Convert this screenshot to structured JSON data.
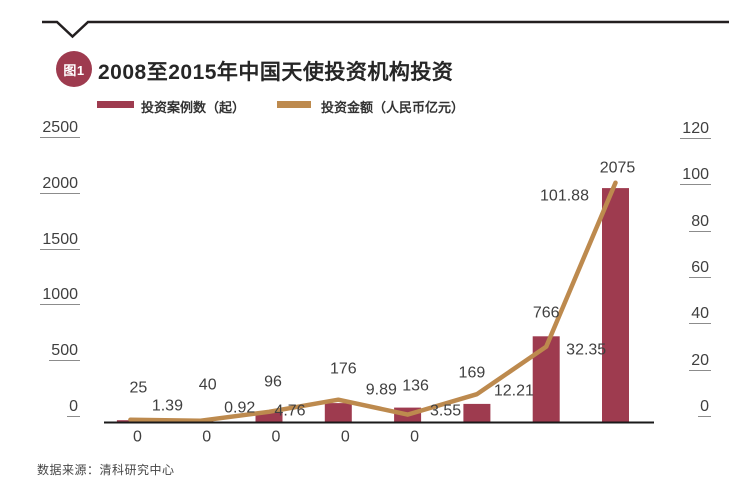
{
  "header": {
    "figure_label": "图1",
    "title": "2008至2015年中国天使投资机构投资"
  },
  "legend": {
    "bar": "投资案例数（起）",
    "line": "投资金额（人民币亿元）"
  },
  "footer": {
    "source": "数据来源：清科研究中心"
  },
  "colors": {
    "bar": "#9e3b4f",
    "line": "#bd8a4e",
    "axis": "#1a1a1a",
    "rule": "#231f20",
    "tick_text": "#3f3f3f",
    "tick_underline": "#8c8c8c",
    "label_text": "#404040",
    "title_text": "#262626"
  },
  "chart_data": {
    "type": "bar",
    "title": "2008至2015年中国天使投资机构投资",
    "categories": [
      "0",
      "0",
      "0",
      "0",
      "0",
      "",
      "",
      ""
    ],
    "series": [
      {
        "name": "投资案例数（起）",
        "chart_type": "bar",
        "axis": "left",
        "values": [
          25,
          40,
          96,
          176,
          136,
          169,
          766,
          2075
        ],
        "labels": [
          "25",
          "40",
          "96",
          "176",
          "136",
          "169",
          "766",
          "2075"
        ]
      },
      {
        "name": "投资金额（人民币亿元）",
        "chart_type": "line",
        "axis": "right",
        "values": [
          1.39,
          0.92,
          4.76,
          9.89,
          3.55,
          12.21,
          32.35,
          101.88
        ],
        "labels": [
          "1.39",
          "0.92",
          "4.76",
          "9.89",
          "3.55",
          "12.21",
          "32.35",
          "101.88"
        ]
      }
    ],
    "left_axis": {
      "tick_labels": [
        "0",
        "500",
        "1000",
        "1500",
        "2000",
        "2500"
      ],
      "range": [
        0,
        2500
      ]
    },
    "right_axis": {
      "tick_labels": [
        "0",
        "20",
        "40",
        "60",
        "80",
        "100",
        "120"
      ],
      "range": [
        0,
        120
      ]
    },
    "grid": false,
    "legend_position": "top"
  }
}
